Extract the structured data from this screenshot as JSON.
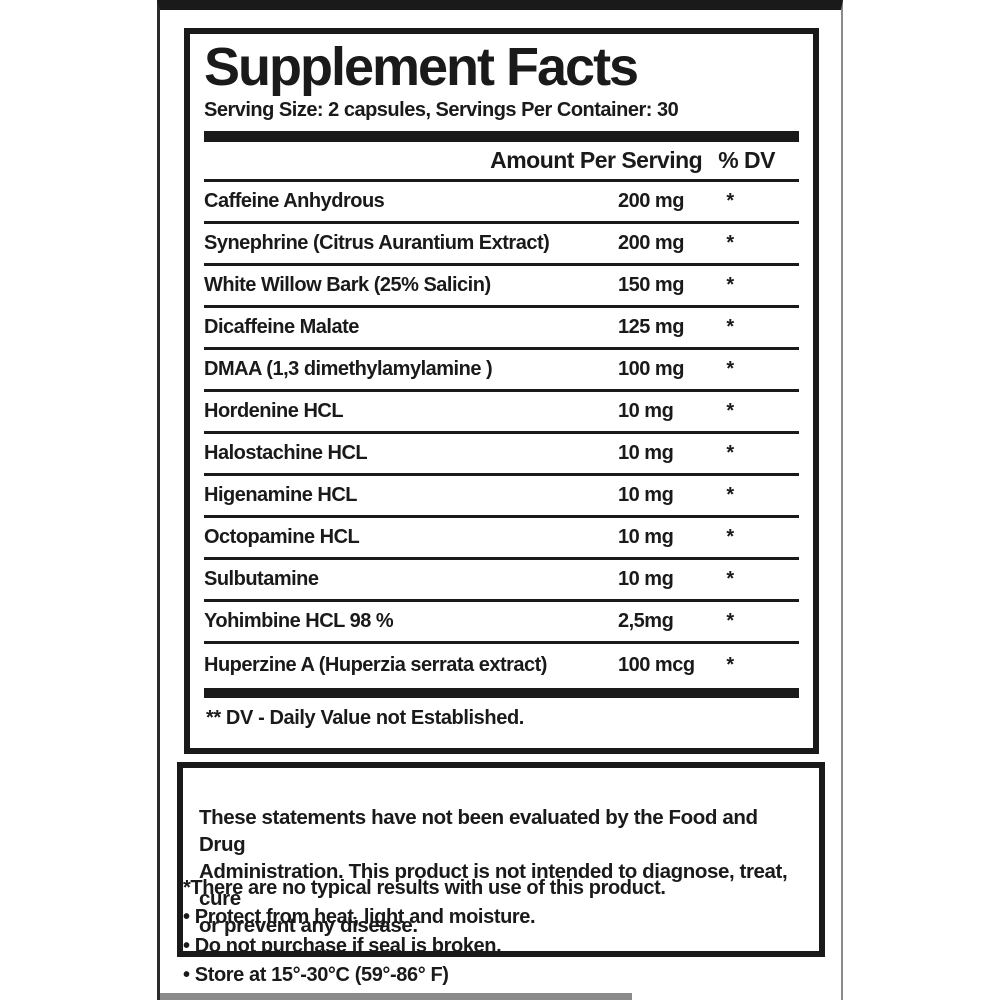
{
  "colors": {
    "ink": "#1a1a1a",
    "paper": "#ffffff",
    "scan_gray": "#8a8a8a",
    "frame_left": "#2a2a2a"
  },
  "label": {
    "title": "Supplement Facts",
    "serving_info": "Serving Size: 2 capsules, Servings Per Container: 30",
    "columns": {
      "amount": "Amount Per Serving",
      "dv": "% DV"
    },
    "rows": [
      {
        "name": "Caffeine Anhydrous",
        "amount": "200 mg",
        "dv": "*"
      },
      {
        "name": "Synephrine (Citrus Aurantium Extract)",
        "amount": "200 mg",
        "dv": "*"
      },
      {
        "name": "White Willow Bark (25% Salicin)",
        "amount": "150 mg",
        "dv": "*"
      },
      {
        "name": "Dicaffeine Malate",
        "amount": "125 mg",
        "dv": "*"
      },
      {
        "name": "DMAA (1,3 dimethylamylamine )",
        "amount": "100 mg",
        "dv": "*"
      },
      {
        "name": "Hordenine HCL",
        "amount": "10 mg",
        "dv": "*"
      },
      {
        "name": "Halostachine HCL",
        "amount": "10 mg",
        "dv": "*"
      },
      {
        "name": "Higenamine HCL",
        "amount": "10 mg",
        "dv": "*"
      },
      {
        "name": "Octopamine HCL",
        "amount": "10 mg",
        "dv": "*"
      },
      {
        "name": "Sulbutamine",
        "amount": "10 mg",
        "dv": "*"
      },
      {
        "name": "Yohimbine  HCL 98 %",
        "amount": "2,5mg",
        "dv": "*"
      },
      {
        "name": "Huperzine A (Huperzia serrata extract)",
        "amount": "100 mcg",
        "dv": "*"
      }
    ],
    "footnote": "** DV -  Daily Value not Established."
  },
  "disclaimer": "These statements have not been evaluated by the Food and Drug\nAdministration. This product is not intended to diagnose, treat, cure\nor prevent any disease.",
  "notes": [
    "*There are no typical results with use of this product.",
    "• Protect from heat, light and moisture.",
    "• Do not purchase if seal is broken.",
    "• Store at 15°-30°C (59°-86° F)"
  ]
}
